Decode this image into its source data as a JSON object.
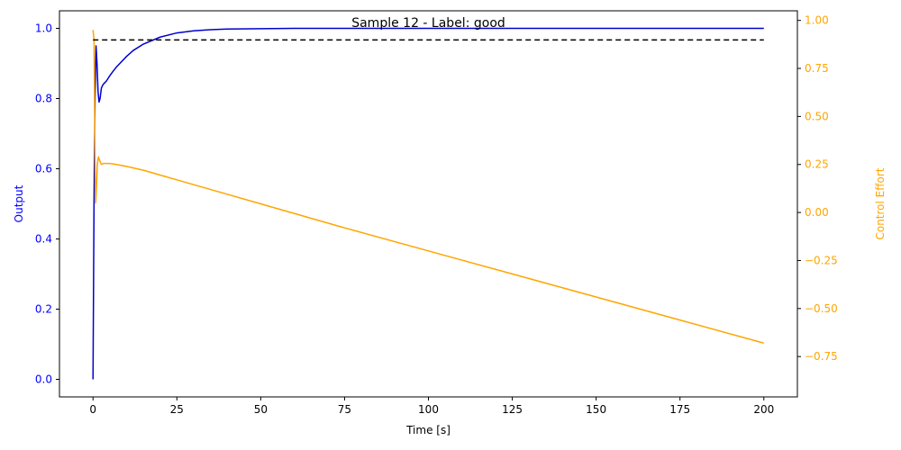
{
  "chart_data": {
    "type": "line",
    "title": "Sample 12 - Label: good",
    "xlabel": "Time [s]",
    "ylabel_left": "Output",
    "ylabel_right": "Control Effort",
    "xlim": [
      -10,
      210
    ],
    "ylim_left": [
      -0.05,
      1.05
    ],
    "ylim_right": [
      -0.96,
      1.05
    ],
    "x_ticks": [
      0,
      25,
      50,
      75,
      100,
      125,
      150,
      175,
      200
    ],
    "y_left_ticks": [
      0.0,
      0.2,
      0.4,
      0.6,
      0.8,
      1.0
    ],
    "y_right_ticks": [
      1.0,
      0.75,
      0.5,
      0.25,
      0.0,
      -0.25,
      -0.5,
      -0.75
    ],
    "x_tick_labels": [
      "0",
      "25",
      "50",
      "75",
      "100",
      "125",
      "150",
      "175",
      "200"
    ],
    "y_left_tick_labels": [
      "0.0",
      "0.2",
      "0.4",
      "0.6",
      "0.8",
      "1.0"
    ],
    "y_right_tick_labels": [
      "1.00",
      "0.75",
      "0.50",
      "0.25",
      "0.00",
      "−0.25",
      "−0.50",
      "−0.75"
    ],
    "grid": false,
    "colors": {
      "output": "#0000cd",
      "control": "#ffa500",
      "setpoint": "#000000",
      "left_axis": "#0000ff",
      "right_axis": "#ffa500"
    },
    "series": [
      {
        "axis": "left",
        "style": "solid",
        "x": [
          0,
          0.3,
          0.6,
          0.9,
          1.2,
          1.5,
          1.8,
          2.1,
          2.5,
          3,
          3.5,
          4,
          5,
          6,
          7,
          8,
          10,
          12,
          15,
          20,
          25,
          30,
          35,
          40,
          50,
          60,
          80,
          100,
          150,
          200
        ],
        "y": [
          0.0,
          0.5,
          0.8,
          0.95,
          0.9,
          0.82,
          0.79,
          0.8,
          0.83,
          0.84,
          0.845,
          0.85,
          0.865,
          0.878,
          0.89,
          0.9,
          0.92,
          0.937,
          0.955,
          0.975,
          0.987,
          0.993,
          0.996,
          0.998,
          0.999,
          1.0,
          1.0,
          1.0,
          1.0,
          1.0
        ]
      },
      {
        "axis": "right",
        "style": "solid",
        "x": [
          0,
          0.3,
          0.6,
          0.8,
          1.0,
          1.3,
          1.6,
          2.0,
          2.5,
          3,
          4,
          5,
          7,
          10,
          15,
          20,
          25,
          30,
          40,
          50,
          75,
          100,
          125,
          150,
          175,
          200
        ],
        "y": [
          0.95,
          0.9,
          0.3,
          0.05,
          0.12,
          0.25,
          0.29,
          0.27,
          0.25,
          0.255,
          0.255,
          0.255,
          0.25,
          0.24,
          0.22,
          0.195,
          0.17,
          0.145,
          0.095,
          0.045,
          -0.08,
          -0.2,
          -0.32,
          -0.44,
          -0.56,
          -0.68
        ]
      },
      {
        "axis": "left",
        "style": "dashed",
        "x": [
          0,
          200
        ],
        "y": [
          0.967,
          0.967
        ]
      }
    ]
  }
}
